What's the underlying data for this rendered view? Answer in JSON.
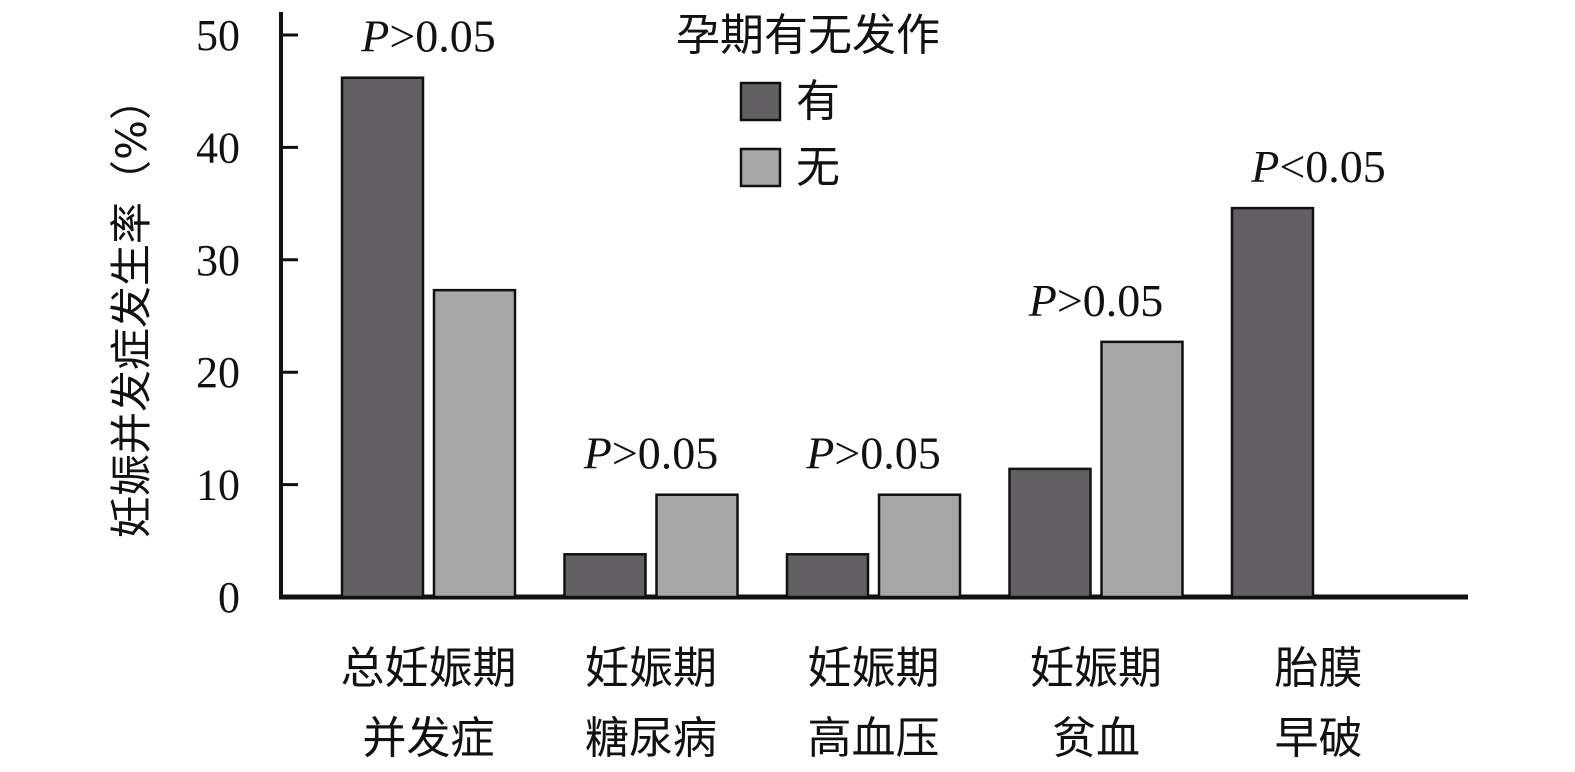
{
  "chart_data": {
    "type": "bar",
    "title": "",
    "xlabel": "",
    "ylabel": "妊娠并发症发生率（%）",
    "ylim": [
      0,
      50
    ],
    "yticks": [
      0,
      10,
      20,
      30,
      40,
      50
    ],
    "grid": false,
    "legend": {
      "title": "孕期有无发作",
      "placement": "top-center"
    },
    "categories": [
      [
        "总妊娠期",
        "并发症"
      ],
      [
        "妊娠期",
        "糖尿病"
      ],
      [
        "妊娠期",
        "高血压"
      ],
      [
        "妊娠期",
        "贫血"
      ],
      [
        "胎膜",
        "早破"
      ]
    ],
    "series": [
      {
        "name": "有",
        "color": "#626062",
        "values": [
          46.2,
          3.8,
          3.8,
          11.4,
          34.6
        ]
      },
      {
        "name": "无",
        "color": "#a8a7a8",
        "values": [
          27.3,
          9.1,
          9.1,
          22.7,
          0
        ]
      }
    ],
    "annotations": [
      {
        "category_index": 0,
        "prefix": "P",
        "text": ">0.05"
      },
      {
        "category_index": 1,
        "prefix": "P",
        "text": ">0.05"
      },
      {
        "category_index": 2,
        "prefix": "P",
        "text": ">0.05"
      },
      {
        "category_index": 3,
        "prefix": "P",
        "text": ">0.05"
      },
      {
        "category_index": 4,
        "prefix": "P",
        "text": "<0.05"
      }
    ]
  }
}
